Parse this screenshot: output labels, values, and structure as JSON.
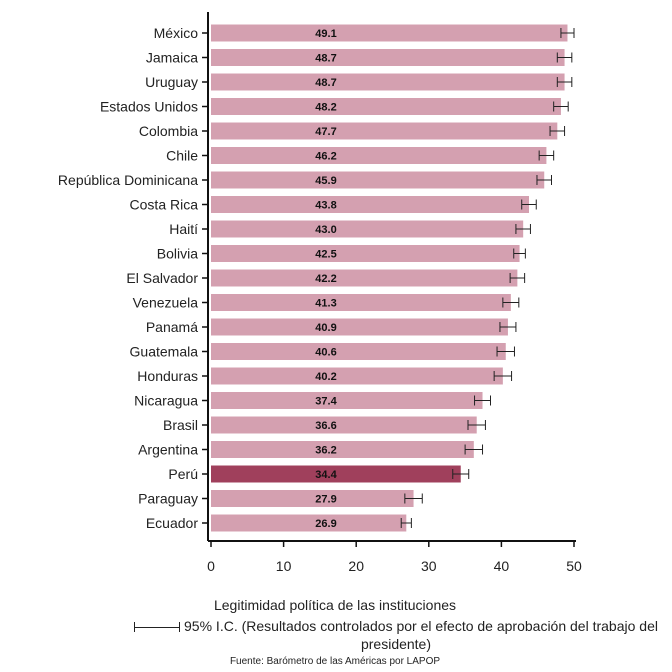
{
  "chart_data": {
    "type": "bar",
    "orientation": "horizontal",
    "categories": [
      "México",
      "Jamaica",
      "Uruguay",
      "Estados Unidos",
      "Colombia",
      "Chile",
      "República Dominicana",
      "Costa Rica",
      "Haití",
      "Bolivia",
      "El Salvador",
      "Venezuela",
      "Panamá",
      "Guatemala",
      "Honduras",
      "Nicaragua",
      "Brasil",
      "Argentina",
      "Perú",
      "Paraguay",
      "Ecuador"
    ],
    "values": [
      49.1,
      48.7,
      48.7,
      48.2,
      47.7,
      46.2,
      45.9,
      43.8,
      43.0,
      42.5,
      42.2,
      41.3,
      40.9,
      40.6,
      40.2,
      37.4,
      36.6,
      36.2,
      34.4,
      27.9,
      26.9
    ],
    "value_labels": [
      "49.1",
      "48.7",
      "48.7",
      "48.2",
      "47.7",
      "46.2",
      "45.9",
      "43.8",
      "43.0",
      "42.5",
      "42.2",
      "41.3",
      "40.9",
      "40.6",
      "40.2",
      "37.4",
      "36.6",
      "36.2",
      "34.4",
      "27.9",
      "26.9"
    ],
    "ci_low": [
      48.2,
      47.7,
      47.7,
      47.2,
      46.7,
      45.2,
      44.9,
      42.8,
      42.0,
      41.7,
      41.2,
      40.2,
      39.8,
      39.4,
      39.0,
      36.3,
      35.4,
      35.0,
      33.3,
      26.7,
      26.2
    ],
    "ci_high": [
      50.0,
      49.7,
      49.7,
      49.2,
      48.7,
      47.2,
      46.9,
      44.8,
      44.0,
      43.3,
      43.2,
      42.4,
      42.0,
      41.8,
      41.4,
      38.5,
      37.8,
      37.4,
      35.5,
      29.1,
      27.6
    ],
    "highlight": "Perú",
    "xlim": [
      0,
      50
    ],
    "xticks": [
      "0",
      "10",
      "20",
      "30",
      "40",
      "50"
    ],
    "xtick_values": [
      0,
      10,
      20,
      30,
      40,
      50
    ],
    "xlabel": "Legitimidad política de las instituciones",
    "legend_text": "95% I.C. (Resultados controlados por el efecto de aprobación del trabajo del presidente)",
    "source": "Fuente: Barómetro de las Américas por LAPOP",
    "colors": {
      "bar": "#d4a0b0",
      "highlight": "#a0405c",
      "axis": "#111111",
      "errorbar": "#222222",
      "highlight_label": "#ffffff"
    }
  }
}
